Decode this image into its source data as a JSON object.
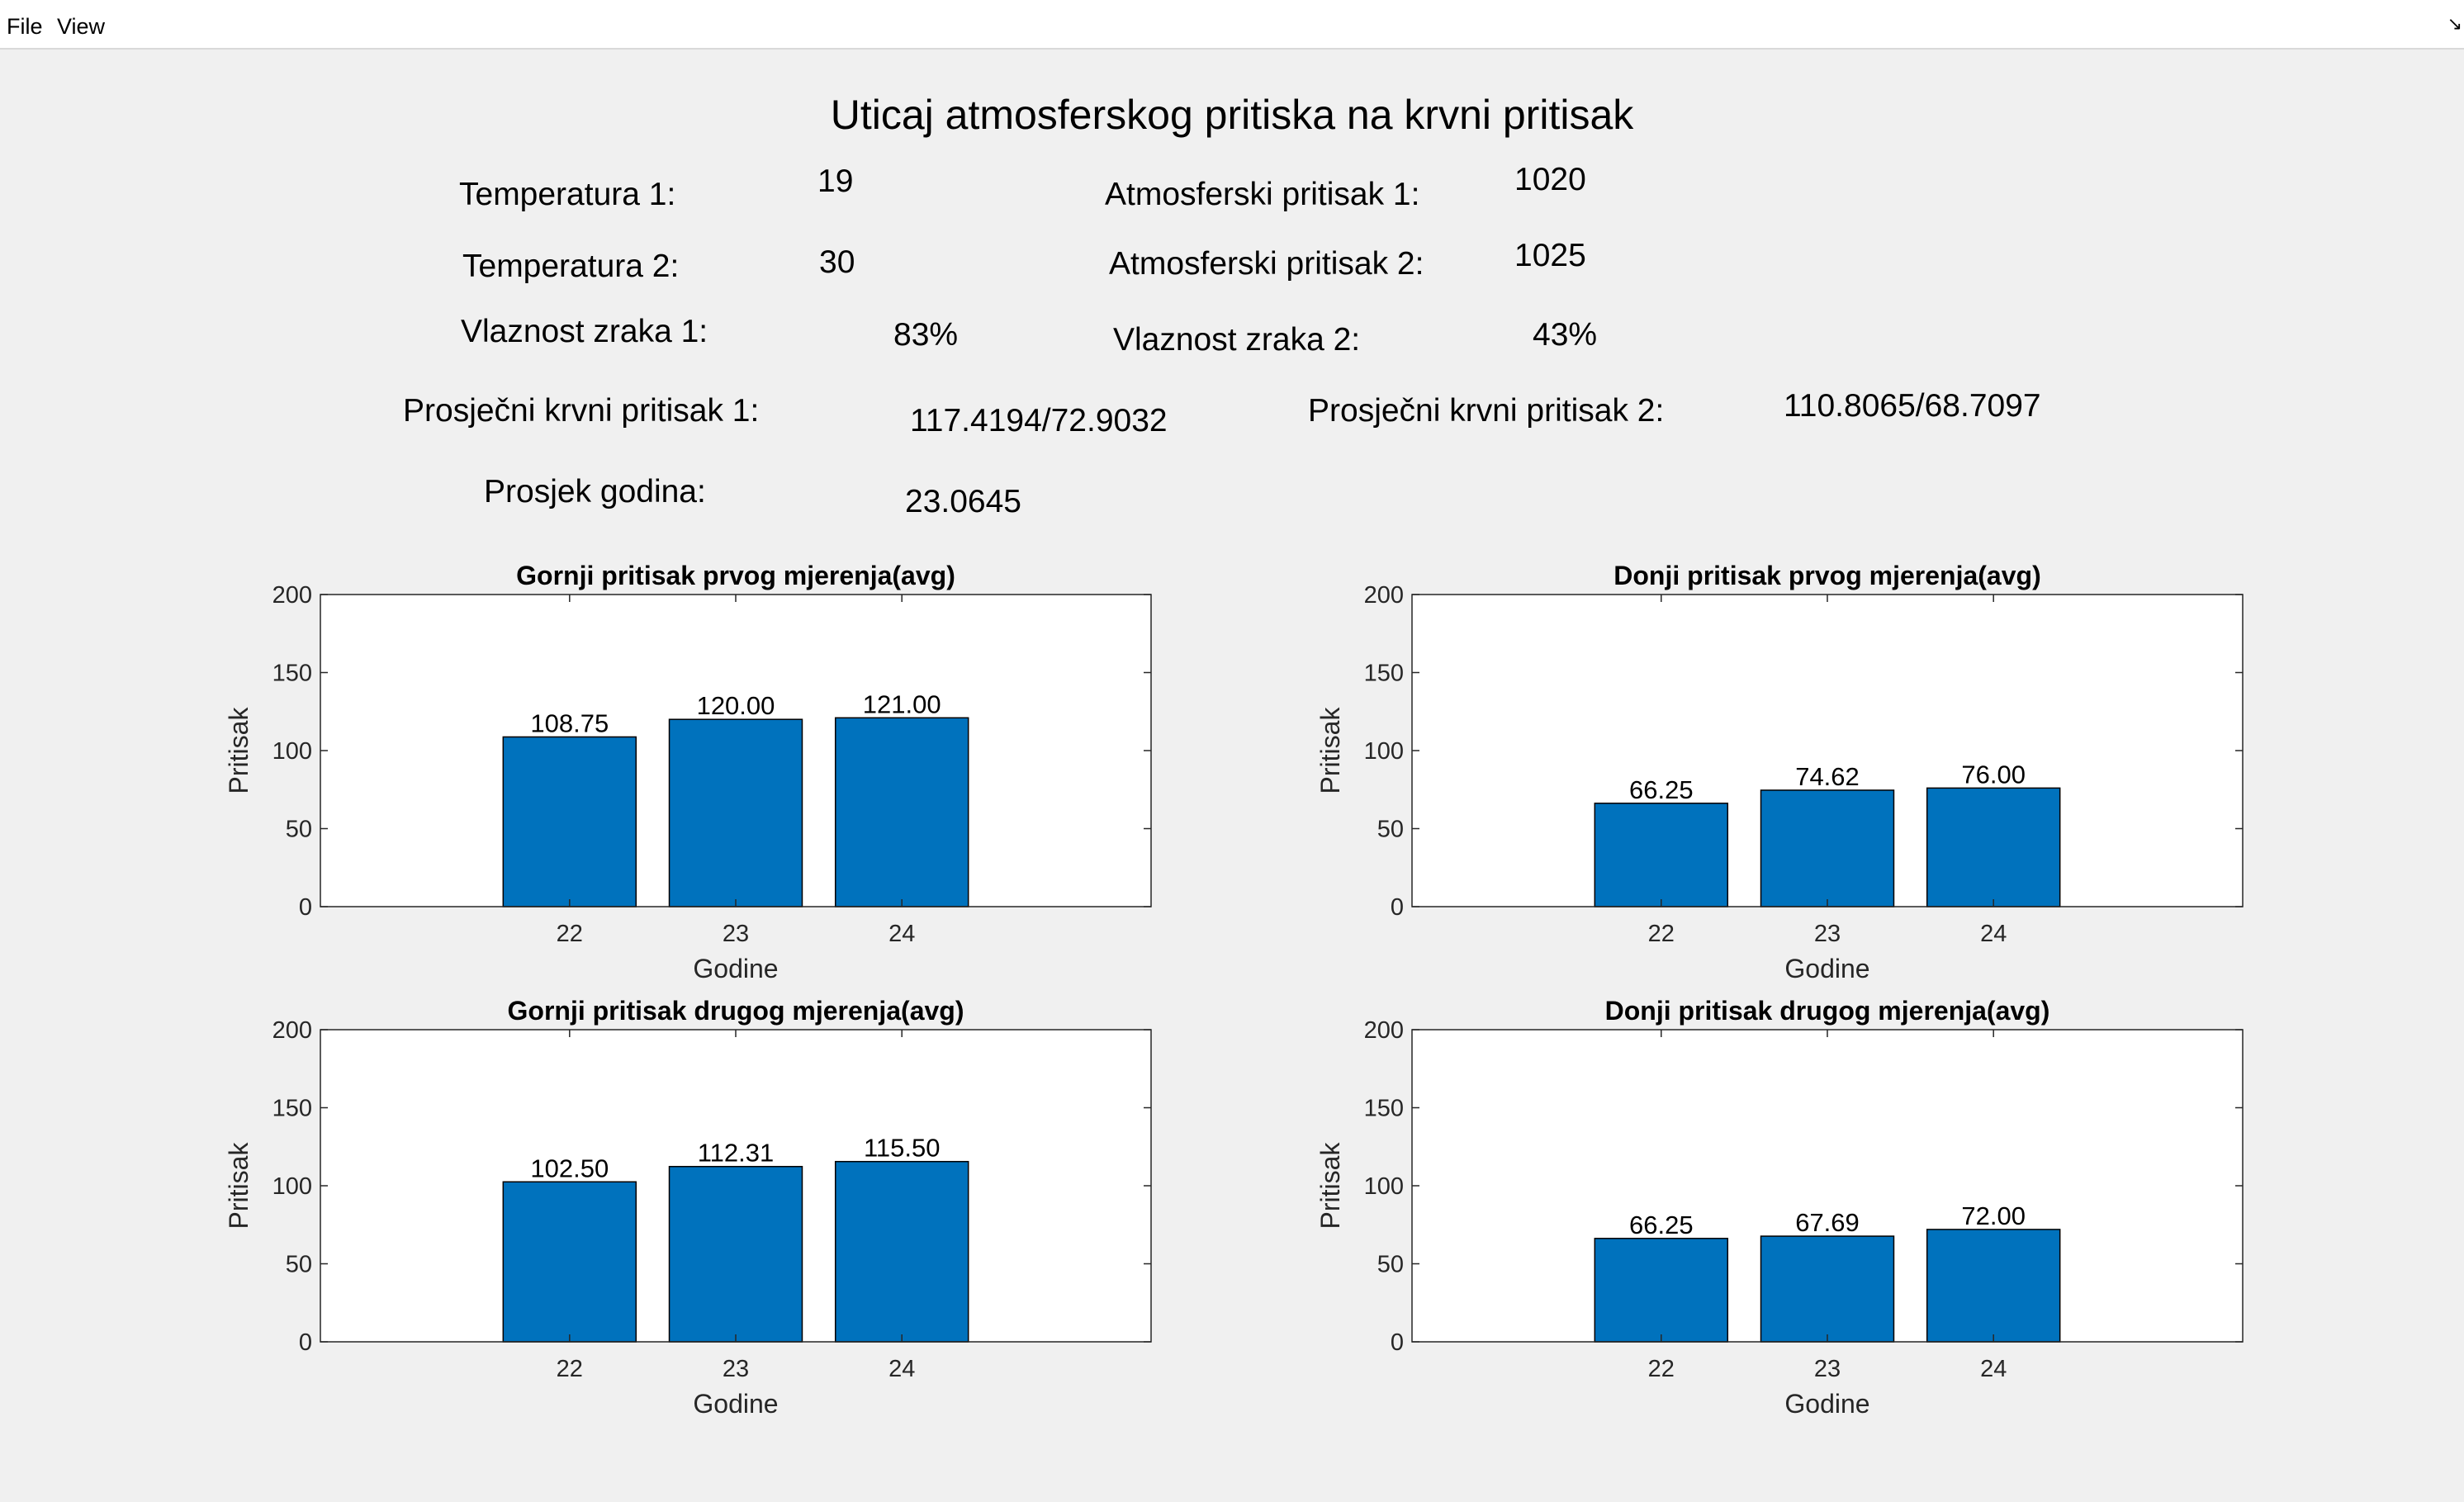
{
  "menu": {
    "items": [
      "File",
      "View"
    ],
    "corner_glyph": "↘"
  },
  "title": "Uticaj atmosferskog pritiska na krvni pritisak",
  "fields": {
    "temp1": {
      "label": "Temperatura 1:",
      "value": "19"
    },
    "temp2": {
      "label": "Temperatura 2:",
      "value": "30"
    },
    "hum1": {
      "label": "Vlaznost zraka 1:",
      "value": "83%"
    },
    "avg_bp1": {
      "label": "Prosječni krvni pritisak 1:",
      "value": "117.4194/72.9032"
    },
    "avg_age": {
      "label": "Prosjek godina:",
      "value": "23.0645"
    },
    "atm1": {
      "label": "Atmosferski pritisak 1:",
      "value": "1020"
    },
    "atm2": {
      "label": "Atmosferski pritisak 2:",
      "value": "1025"
    },
    "hum2": {
      "label": "Vlaznost zraka 2:",
      "value": "43%"
    },
    "avg_bp2": {
      "label": "Prosječni krvni pritisak 2:",
      "value": "110.8065/68.7097"
    }
  },
  "colors": {
    "bar": "#0072bd",
    "bar_edge": "#000000",
    "axes_bg": "#ffffff",
    "figure_bg": "#f0f0f0"
  },
  "chart_data": [
    {
      "type": "bar",
      "title": "Gornji pritisak prvog mjerenja(avg)",
      "xlabel": "Godine",
      "ylabel": "Pritisak",
      "categories": [
        "22",
        "23",
        "24"
      ],
      "values": [
        108.75,
        120.0,
        121.0
      ],
      "data_labels": [
        "108.75",
        "120.00",
        "121.00"
      ],
      "ylim": [
        0,
        200
      ],
      "yticks": [
        0,
        50,
        100,
        150,
        200
      ],
      "xlim": [
        20.5,
        25.5
      ],
      "grid": false
    },
    {
      "type": "bar",
      "title": "Donji pritisak prvog mjerenja(avg)",
      "xlabel": "Godine",
      "ylabel": "Pritisak",
      "categories": [
        "22",
        "23",
        "24"
      ],
      "values": [
        66.25,
        74.62,
        76.0
      ],
      "data_labels": [
        "66.25",
        "74.62",
        "76.00"
      ],
      "ylim": [
        0,
        200
      ],
      "yticks": [
        0,
        50,
        100,
        150,
        200
      ],
      "xlim": [
        20.5,
        25.5
      ],
      "grid": false
    },
    {
      "type": "bar",
      "title": "Gornji pritisak drugog mjerenja(avg)",
      "xlabel": "Godine",
      "ylabel": "Pritisak",
      "categories": [
        "22",
        "23",
        "24"
      ],
      "values": [
        102.5,
        112.31,
        115.5
      ],
      "data_labels": [
        "102.50",
        "112.31",
        "115.50"
      ],
      "ylim": [
        0,
        200
      ],
      "yticks": [
        0,
        50,
        100,
        150,
        200
      ],
      "xlim": [
        20.5,
        25.5
      ],
      "grid": false
    },
    {
      "type": "bar",
      "title": "Donji pritisak drugog mjerenja(avg)",
      "xlabel": "Godine",
      "ylabel": "Pritisak",
      "categories": [
        "22",
        "23",
        "24"
      ],
      "values": [
        66.25,
        67.69,
        72.0
      ],
      "data_labels": [
        "66.25",
        "67.69",
        "72.00"
      ],
      "ylim": [
        0,
        200
      ],
      "yticks": [
        0,
        50,
        100,
        150,
        200
      ],
      "xlim": [
        20.5,
        25.5
      ],
      "grid": false
    }
  ]
}
